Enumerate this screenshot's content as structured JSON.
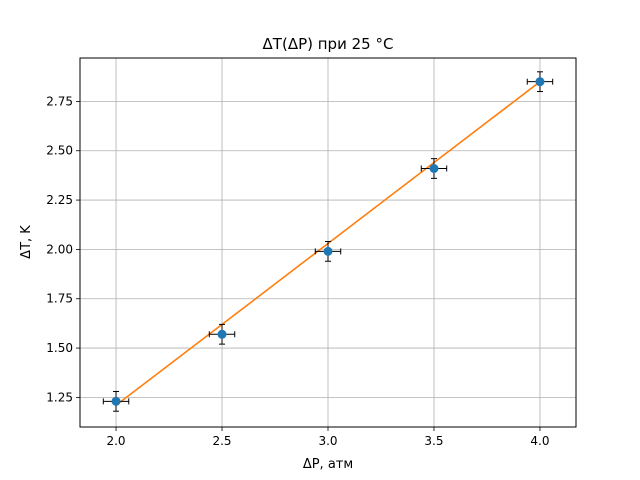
{
  "chart_data": {
    "type": "scatter",
    "title": "ΔT(ΔP) при 25 °C",
    "xlabel": "ΔP, атм",
    "ylabel": "ΔT, K",
    "xlim": [
      1.83,
      4.17
    ],
    "ylim": [
      1.1,
      2.97
    ],
    "xticks": [
      "2.0",
      "2.5",
      "3.0",
      "3.5",
      "4.0"
    ],
    "yticks": [
      "1.25",
      "1.50",
      "1.75",
      "2.00",
      "2.25",
      "2.50",
      "2.75"
    ],
    "grid": true,
    "series": [
      {
        "kind": "errorbar-points",
        "color": "#1f77b4",
        "x": [
          2.0,
          2.5,
          3.0,
          3.5,
          4.0
        ],
        "y": [
          1.23,
          1.57,
          1.99,
          2.41,
          2.85
        ],
        "xerr": 0.06,
        "yerr": 0.05
      },
      {
        "kind": "fit-line",
        "color": "#ff7f0e",
        "x": [
          2.0,
          4.0
        ],
        "y": [
          1.21,
          2.85
        ]
      }
    ]
  }
}
